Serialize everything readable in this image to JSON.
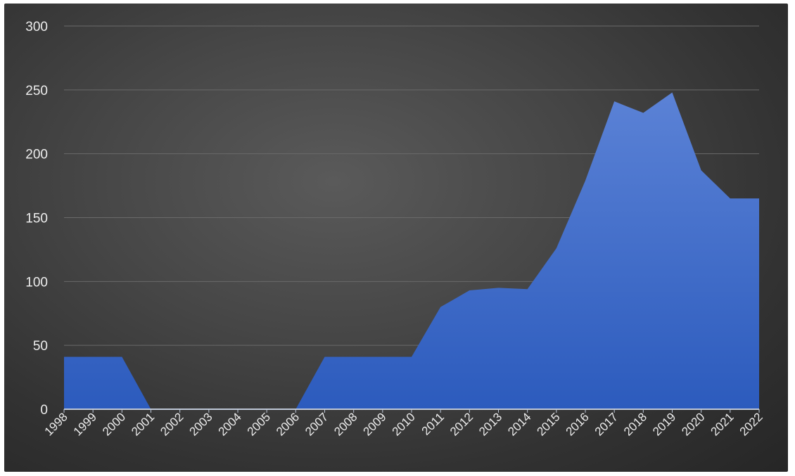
{
  "chart_data": {
    "type": "area",
    "title": "",
    "xlabel": "",
    "ylabel": "",
    "x": [
      "1998",
      "1999",
      "2000",
      "2001",
      "2002",
      "2003",
      "2004",
      "2005",
      "2006",
      "2007",
      "2008",
      "2009",
      "2010",
      "2011",
      "2012",
      "2013",
      "2014",
      "2015",
      "2016",
      "2017",
      "2018",
      "2019",
      "2020",
      "2021",
      "2022"
    ],
    "series": [
      {
        "values": [
          41,
          41,
          41,
          0,
          0,
          0,
          0,
          0,
          0,
          41,
          41,
          41,
          41,
          80,
          93,
          95,
          94,
          126,
          179,
          241,
          232,
          248,
          187,
          165,
          165
        ]
      }
    ],
    "ylim": [
      0,
      300
    ],
    "yticks": [
      0,
      50,
      100,
      150,
      200,
      250,
      300
    ],
    "grid": true,
    "legend": "none",
    "colors": {
      "background": "#3c3c3c",
      "area_top": "#5b82d6",
      "area_bottom": "#2c5bbd",
      "gridline": "#6a6a6a",
      "baseline": "#bfc8d8",
      "text": "#ececec"
    }
  }
}
